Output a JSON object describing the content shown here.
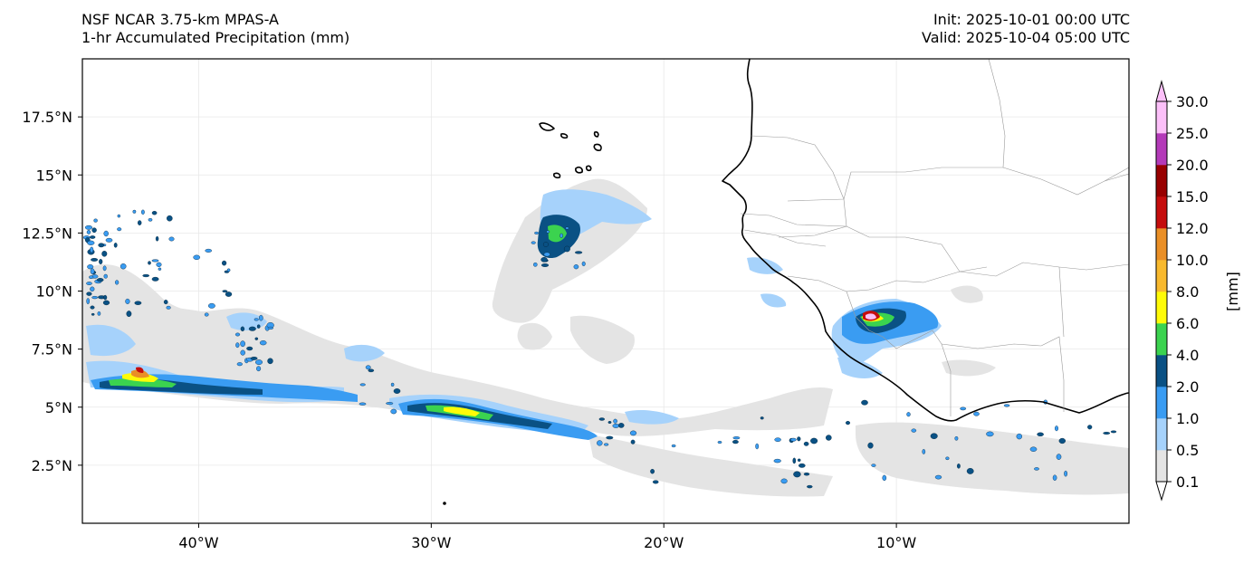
{
  "header": {
    "model": "NSF NCAR 3.75-km MPAS-A",
    "field": "1-hr Accumulated Precipitation (mm)",
    "init": "Init: 2025-10-01 00:00 UTC",
    "valid": "Valid: 2025-10-04 05:00 UTC"
  },
  "map": {
    "lon_range": [
      -45,
      0
    ],
    "lat_range": [
      0,
      20
    ],
    "lon_ticks": [
      {
        "value": -40,
        "label": "40°W"
      },
      {
        "value": -30,
        "label": "30°W"
      },
      {
        "value": -20,
        "label": "20°W"
      },
      {
        "value": -10,
        "label": "10°W"
      }
    ],
    "lat_ticks": [
      {
        "value": 2.5,
        "label": "2.5°N"
      },
      {
        "value": 5,
        "label": "5°N"
      },
      {
        "value": 7.5,
        "label": "7.5°N"
      },
      {
        "value": 10,
        "label": "10°N"
      },
      {
        "value": 12.5,
        "label": "12.5°N"
      },
      {
        "value": 15,
        "label": "15°N"
      },
      {
        "value": 17.5,
        "label": "17.5°N"
      }
    ]
  },
  "colorbar": {
    "unit_label": "[mm]",
    "levels": [
      "0.1",
      "0.5",
      "1.0",
      "2.0",
      "4.0",
      "6.0",
      "8.0",
      "10.0",
      "12.0",
      "15.0",
      "20.0",
      "25.0",
      "30.0"
    ],
    "colors": [
      "#e4e4e4",
      "#a6d2fb",
      "#3a9cf2",
      "#0a5184",
      "#3bd34f",
      "#fffb08",
      "#f8b92e",
      "#ea8f26",
      "#c50d0d",
      "#980000",
      "#b43ab9",
      "#fcc0f9"
    ],
    "under_color": "#ffffff",
    "over_color": "#fcc0f9"
  },
  "coast_color": "#000000",
  "border_color": "#999999"
}
